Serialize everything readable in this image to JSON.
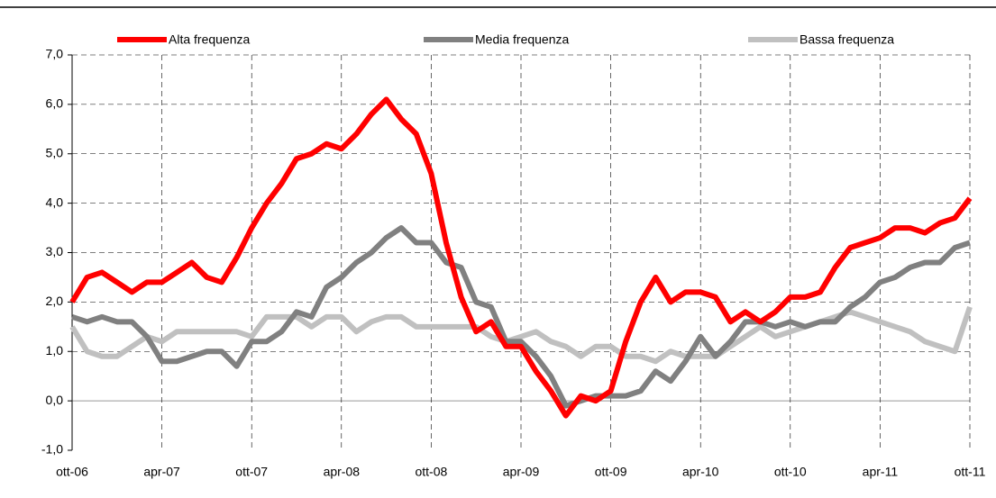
{
  "chart_data": {
    "type": "line",
    "categories": [
      "ott-06",
      null,
      null,
      null,
      null,
      null,
      "apr-07",
      null,
      null,
      null,
      null,
      null,
      "ott-07",
      null,
      null,
      null,
      null,
      null,
      "apr-08",
      null,
      null,
      null,
      null,
      null,
      "ott-08",
      null,
      null,
      null,
      null,
      null,
      "apr-09",
      null,
      null,
      null,
      null,
      null,
      "ott-09",
      null,
      null,
      null,
      null,
      null,
      "apr-10",
      null,
      null,
      null,
      null,
      null,
      "ott-10",
      null,
      null,
      null,
      null,
      null,
      "apr-11",
      null,
      null,
      null,
      null,
      null,
      "ott-11"
    ],
    "series": [
      {
        "name": "Alta frequenza",
        "color": "#ff0000",
        "values": [
          2.0,
          2.5,
          2.6,
          2.4,
          2.2,
          2.4,
          2.4,
          2.6,
          2.8,
          2.5,
          2.4,
          2.9,
          3.5,
          4.0,
          4.4,
          4.9,
          5.0,
          5.2,
          5.1,
          5.4,
          5.8,
          6.1,
          5.7,
          5.4,
          4.6,
          3.2,
          2.1,
          1.4,
          1.6,
          1.1,
          1.1,
          0.6,
          0.2,
          -0.3,
          0.1,
          0.0,
          0.2,
          1.2,
          2.0,
          2.5,
          2.0,
          2.2,
          2.2,
          2.1,
          1.6,
          1.8,
          1.6,
          1.8,
          2.1,
          2.1,
          2.2,
          2.7,
          3.1,
          3.2,
          3.3,
          3.5,
          3.5,
          3.4,
          3.6,
          3.7,
          4.1
        ]
      },
      {
        "name": "Media frequenza",
        "color": "#808080",
        "values": [
          1.7,
          1.6,
          1.7,
          1.6,
          1.6,
          1.3,
          0.8,
          0.8,
          0.9,
          1.0,
          1.0,
          0.7,
          1.2,
          1.2,
          1.4,
          1.8,
          1.7,
          2.3,
          2.5,
          2.8,
          3.0,
          3.3,
          3.5,
          3.2,
          3.2,
          2.8,
          2.7,
          2.0,
          1.9,
          1.2,
          1.2,
          0.9,
          0.5,
          -0.1,
          0.0,
          0.1,
          0.1,
          0.1,
          0.2,
          0.6,
          0.4,
          0.8,
          1.3,
          0.9,
          1.2,
          1.6,
          1.6,
          1.5,
          1.6,
          1.5,
          1.6,
          1.6,
          1.9,
          2.1,
          2.4,
          2.5,
          2.7,
          2.8,
          2.8,
          3.1,
          3.2
        ]
      },
      {
        "name": "Bassa frequenza",
        "color": "#c0c0c0",
        "values": [
          1.5,
          1.0,
          0.9,
          0.9,
          1.1,
          1.3,
          1.2,
          1.4,
          1.4,
          1.4,
          1.4,
          1.4,
          1.3,
          1.7,
          1.7,
          1.7,
          1.5,
          1.7,
          1.7,
          1.4,
          1.6,
          1.7,
          1.7,
          1.5,
          1.5,
          1.5,
          1.5,
          1.5,
          1.3,
          1.2,
          1.3,
          1.4,
          1.2,
          1.1,
          0.9,
          1.1,
          1.1,
          0.9,
          0.9,
          0.8,
          1.0,
          0.9,
          0.9,
          0.9,
          1.1,
          1.3,
          1.5,
          1.3,
          1.4,
          1.5,
          1.6,
          1.7,
          1.8,
          1.7,
          1.6,
          1.5,
          1.4,
          1.2,
          1.1,
          1.0,
          1.9
        ]
      }
    ],
    "ylim": [
      -1,
      7
    ],
    "yticks": [
      {
        "value": -1,
        "label": "-1,0"
      },
      {
        "value": 0,
        "label": "0,0"
      },
      {
        "value": 1,
        "label": "1,0"
      },
      {
        "value": 2,
        "label": "2,0"
      },
      {
        "value": 3,
        "label": "3,0"
      },
      {
        "value": 4,
        "label": "4,0"
      },
      {
        "value": 5,
        "label": "5,0"
      },
      {
        "value": 6,
        "label": "6,0"
      },
      {
        "value": 7,
        "label": "7,0"
      }
    ],
    "grid": true
  }
}
